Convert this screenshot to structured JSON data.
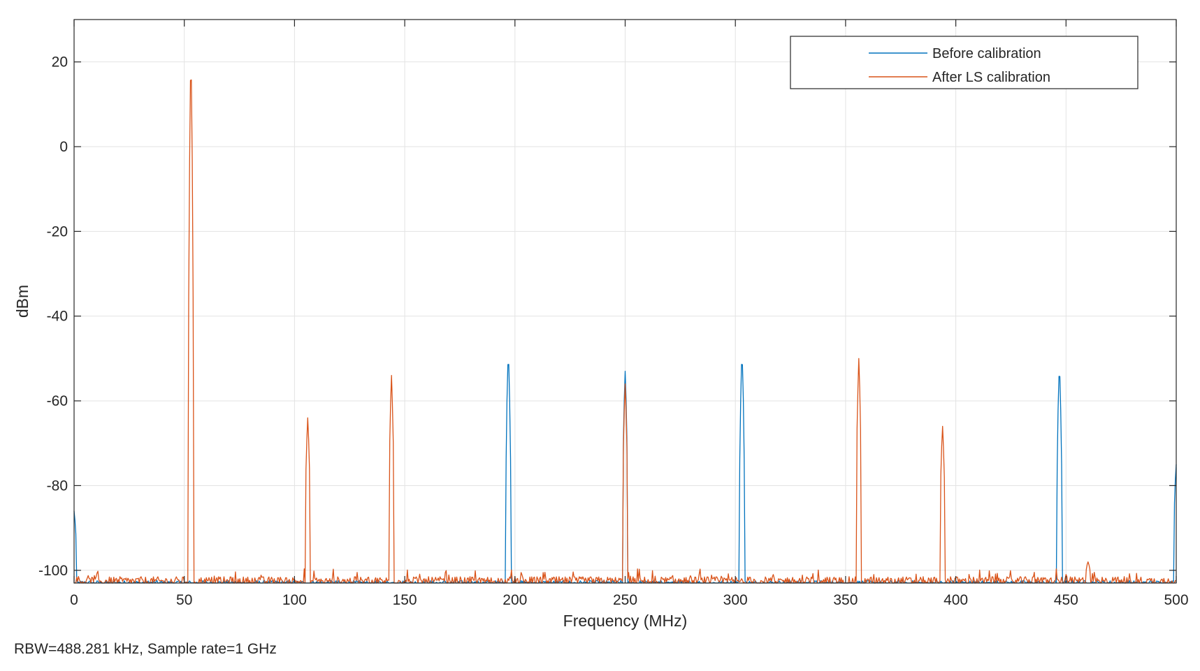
{
  "chart_data": {
    "type": "line",
    "xlabel": "Frequency (MHz)",
    "ylabel": "dBm",
    "xlim": [
      0,
      500
    ],
    "ylim": [
      -103,
      30
    ],
    "xticks": [
      0,
      50,
      100,
      150,
      200,
      250,
      300,
      350,
      400,
      450,
      500
    ],
    "yticks": [
      -100,
      -80,
      -60,
      -40,
      -20,
      0,
      20
    ],
    "grid": true,
    "legend_position": "top-right",
    "noise_floor": -102,
    "series": [
      {
        "name": "Before calibration",
        "color": "#0072BD",
        "peaks": [
          {
            "x": 0,
            "y": -86
          },
          {
            "x": 197,
            "y": -48
          },
          {
            "x": 250,
            "y": -53
          },
          {
            "x": 303,
            "y": -48
          },
          {
            "x": 447,
            "y": -51
          },
          {
            "x": 500,
            "y": -75
          }
        ]
      },
      {
        "name": "After LS calibration",
        "color": "#D95319",
        "peaks": [
          {
            "x": 53,
            "y": 23.5
          },
          {
            "x": 106,
            "y": -64
          },
          {
            "x": 144,
            "y": -54
          },
          {
            "x": 250,
            "y": -56
          },
          {
            "x": 356,
            "y": -50
          },
          {
            "x": 394,
            "y": -66
          },
          {
            "x": 460,
            "y": -98
          }
        ]
      }
    ]
  },
  "footer": {
    "note": "RBW=488.281 kHz, Sample rate=1 GHz"
  }
}
